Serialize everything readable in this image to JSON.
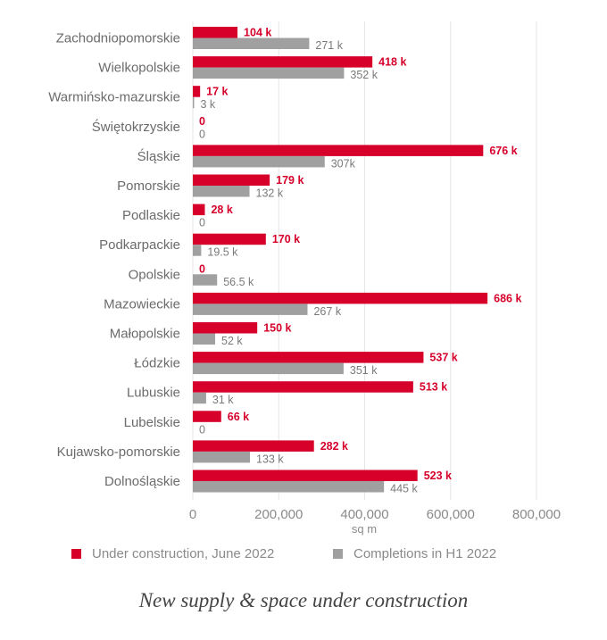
{
  "chart_data": {
    "type": "bar",
    "orientation": "horizontal",
    "categories": [
      "Zachodniopomorskie",
      "Wielkopolskie",
      "Warmińsko-mazurskie",
      "Świętokrzyskie",
      "Śląskie",
      "Pomorskie",
      "Podlaskie",
      "Podkarpackie",
      "Opolskie",
      "Mazowieckie",
      "Małopolskie",
      "Łódzkie",
      "Lubuskie",
      "Lubelskie",
      "Kujawsko-pomorskie",
      "Dolnośląskie"
    ],
    "series": [
      {
        "name": "Under construction, June 2022",
        "color": "#d6002a",
        "values": [
          104000,
          418000,
          17000,
          0,
          676000,
          179000,
          28000,
          170000,
          0,
          686000,
          150000,
          537000,
          513000,
          66000,
          282000,
          523000
        ],
        "labels": [
          "104 k",
          "418 k",
          "17 k",
          "0",
          "676 k",
          "179 k",
          "28 k",
          "170 k",
          "0",
          "686 k",
          "150 k",
          "537 k",
          "513 k",
          "66 k",
          "282 k",
          "523 k"
        ]
      },
      {
        "name": "Completions in H1 2022",
        "color": "#a0a0a0",
        "values": [
          271000,
          352000,
          3000,
          0,
          307000,
          132000,
          0,
          19500,
          56500,
          267000,
          52000,
          351000,
          31000,
          0,
          133000,
          445000
        ],
        "labels": [
          "271 k",
          "352 k",
          "3 k",
          "0",
          "307k",
          "132 k",
          "0",
          "19.5 k",
          "56.5 k",
          "267 k",
          "52 k",
          "351 k",
          "31 k",
          "0",
          "133 k",
          "445 k"
        ]
      }
    ],
    "xlim": [
      0,
      800000
    ],
    "xticks": [
      "0",
      "200,000",
      "400,000",
      "600,000",
      "800,000"
    ],
    "xlabel": "sq m",
    "legend_position": "bottom",
    "grid": "vertical"
  },
  "caption": "New supply & space under construction"
}
